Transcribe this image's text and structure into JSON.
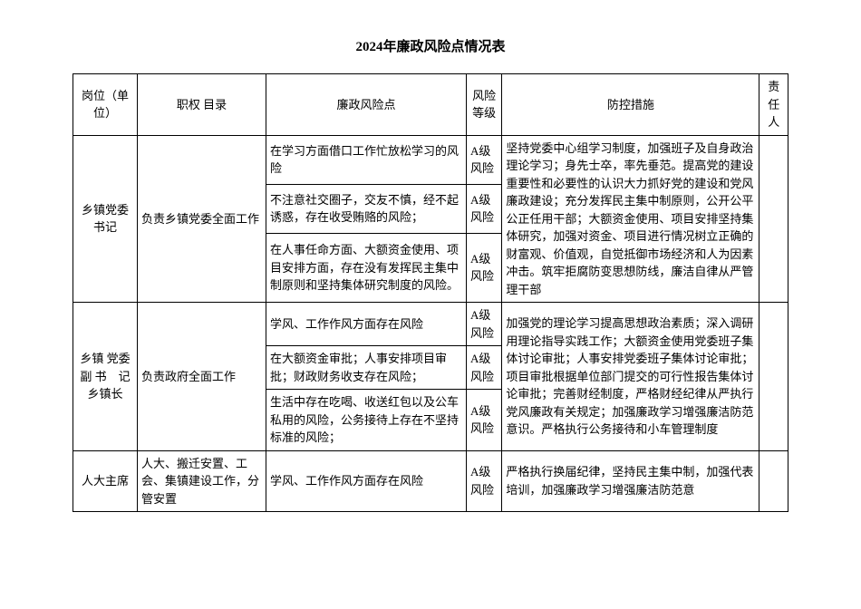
{
  "title": "2024年廉政风险点情况表",
  "headers": {
    "position": "岗位（单位）",
    "duty": "职权\n目录",
    "risk": "廉政风险点",
    "level": "风险等级",
    "measure": "防控措施",
    "person": "责任人"
  },
  "rows": {
    "r1_position": "乡镇党委书记",
    "r1_duty": "负责乡镇党委全面工作",
    "r1a_risk": "在学习方面借口工作忙放松学习的风险",
    "r1a_level": "A级风险",
    "r1b_risk": "不注意社交圈子，交友不慎，经不起诱惑，存在收受贿赂的风险；",
    "r1b_level": "A级风险",
    "r1c_risk": "在人事任命方面、大额资金使用、项目安排方面，存在没有发挥民主集中制原则和坚持集体研究制度的风险。",
    "r1c_level": "A级风险",
    "r1_measure": "坚持党委中心组学习制度，加强班子及自身政治理论学习；身先士卒，率先垂范。提高党的建设重要性和必要性的认识大力抓好党的建设和党风廉政建设；充分发挥民主集中制原则，公开公平公正任用干部；大额资金使用、项目安排坚持集体研究，加强对资金、项目进行情况树立正确的财富观、价值观，自觉抵御市场经济和人为因素冲击。筑牢拒腐防变思想防线，廉洁自律从严管理干部",
    "r2_position": "乡镇\n党委副\n书　记\n乡镇长",
    "r2_duty": "负责政府全面工作",
    "r2a_risk": "学风、工作作风方面存在风险",
    "r2a_level": "A级风险",
    "r2b_risk": "在大额资金审批；人事安排项目审批；财政财务收支存在风险；",
    "r2b_level": "A级风险",
    "r2c_risk": "生活中存在吃喝、收送红包以及公车私用的风险，公务接待上存在不坚持标准的风险；",
    "r2c_level": "A级风险",
    "r2_measure": "加强党的理论学习提高思想政治素质；深入调研用理论指导实践工作；大额资金使用党委班子集体讨论审批；人事安排党委班子集体讨论审批；项目审批根据单位部门提交的可行性报告集体讨论审批；完善财经制度，严格财经纪律从严执行党风廉政有关规定；加强廉政学习增强廉洁防范意识。严格执行公务接待和小车管理制度",
    "r3_position": "人大主席",
    "r3_duty": "人大、搬迁安置、工会、集镇建设工作，分管安置",
    "r3_risk": "学风、工作作风方面存在风险",
    "r3_level": "A级风险",
    "r3_measure": "严格执行换届纪律，坚持民主集中制，加强代表培训，加强廉政学习增强廉洁防范意"
  }
}
